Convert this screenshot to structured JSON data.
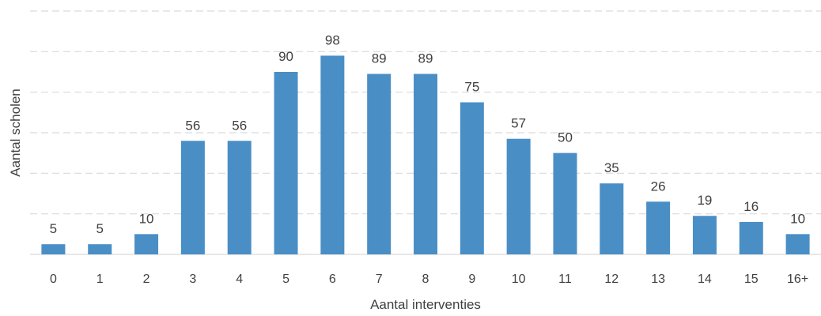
{
  "chart_data": {
    "type": "bar",
    "categories": [
      "0",
      "1",
      "2",
      "3",
      "4",
      "5",
      "6",
      "7",
      "8",
      "9",
      "10",
      "11",
      "12",
      "13",
      "14",
      "15",
      "16+"
    ],
    "values": [
      5,
      5,
      10,
      56,
      56,
      90,
      98,
      89,
      89,
      75,
      57,
      50,
      35,
      26,
      19,
      16,
      10
    ],
    "data_labels": [
      "5",
      "5",
      "10",
      "56",
      "56",
      "90",
      "98",
      "89",
      "89",
      "75",
      "57",
      "50",
      "35",
      "26",
      "19",
      "16",
      "10"
    ],
    "xlabel": "Aantal interventies",
    "ylabel": "Aantal scholen",
    "ylim": [
      0,
      120
    ],
    "grid": true,
    "legend": "none",
    "bar_color": "#4a8ec6",
    "grid_color": "#d9d9d9",
    "axis_color": "#d9d9d9",
    "text_color": "#404040"
  }
}
